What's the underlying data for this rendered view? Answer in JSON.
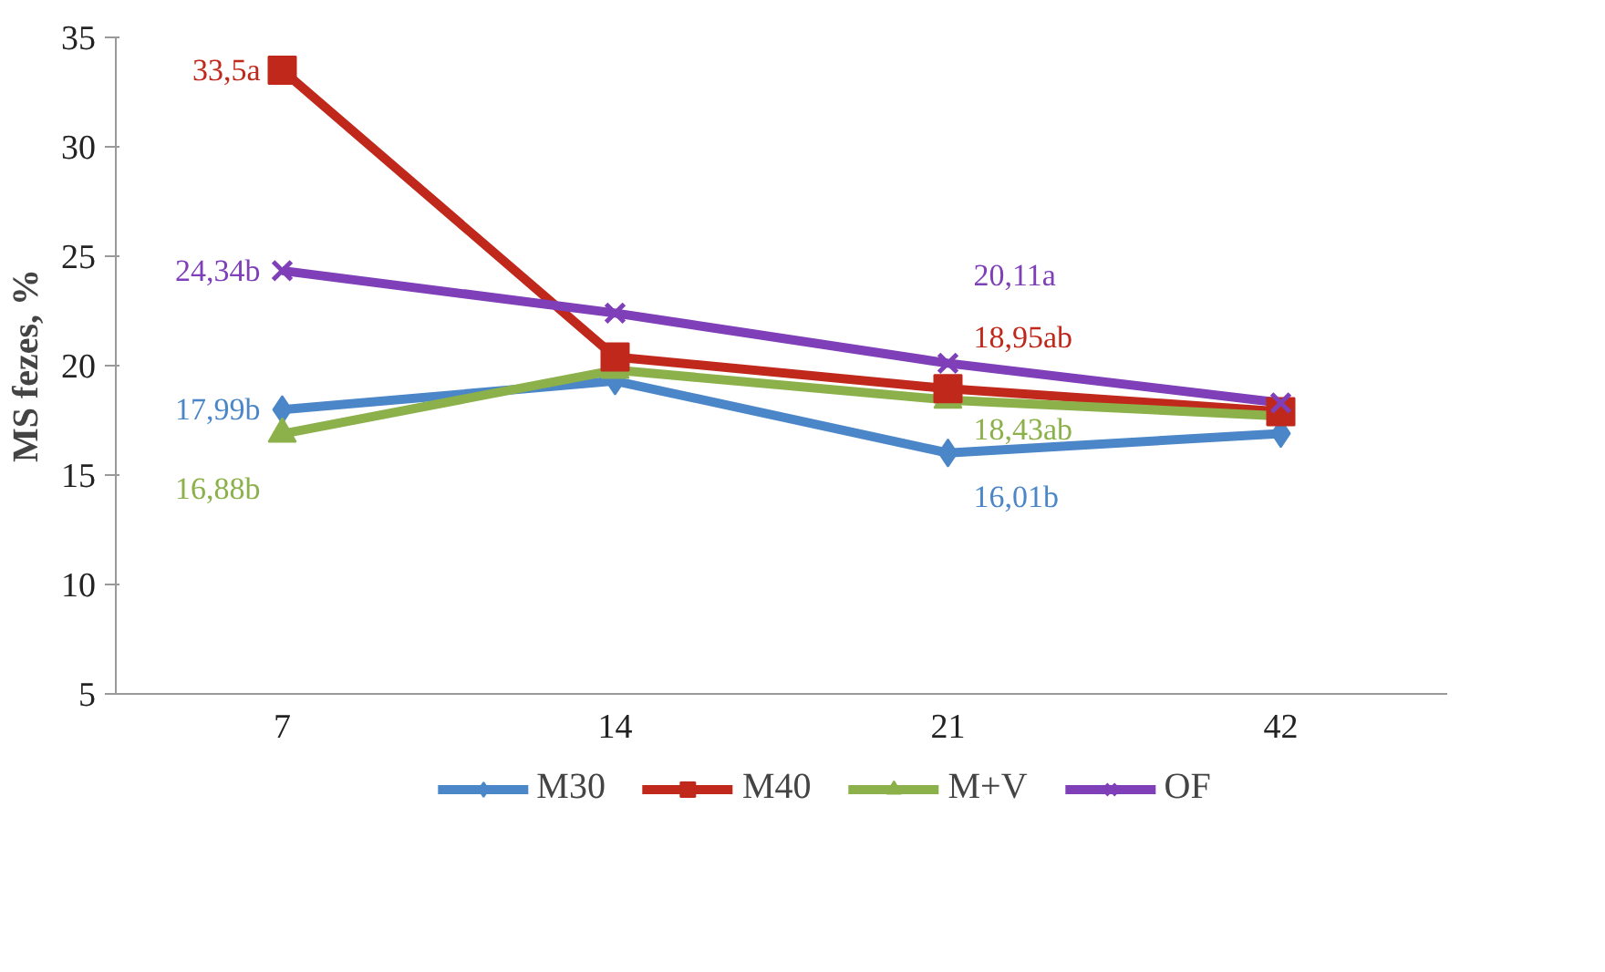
{
  "chart_data": {
    "type": "line",
    "ylabel": "MS fezes, %",
    "categories": [
      "7",
      "14",
      "21",
      "42"
    ],
    "ylim": [
      5,
      35
    ],
    "yticks": [
      5,
      10,
      15,
      20,
      25,
      30,
      35
    ],
    "grid": false,
    "legend": "bottom",
    "series": [
      {
        "name": "M30",
        "color": "#4a86c8",
        "marker": "diamond",
        "values": [
          17.99,
          19.3,
          16.01,
          16.9
        ],
        "value_labels": [
          "17,99b",
          null,
          "16,01b",
          null
        ]
      },
      {
        "name": "M40",
        "color": "#c0281c",
        "marker": "square",
        "values": [
          33.5,
          20.4,
          18.95,
          17.9
        ],
        "value_labels": [
          "33,5a",
          null,
          "18,95ab",
          null
        ]
      },
      {
        "name": "M+V",
        "color": "#8cb04a",
        "marker": "triangle",
        "values": [
          16.88,
          19.8,
          18.43,
          17.7
        ],
        "value_labels": [
          "16,88b",
          null,
          "18,43ab",
          null
        ]
      },
      {
        "name": "OF",
        "color": "#7e3fb8",
        "marker": "cross",
        "values": [
          24.34,
          22.4,
          20.11,
          18.3
        ],
        "value_labels": [
          "24,34b",
          null,
          "20,11a",
          null
        ]
      }
    ]
  }
}
